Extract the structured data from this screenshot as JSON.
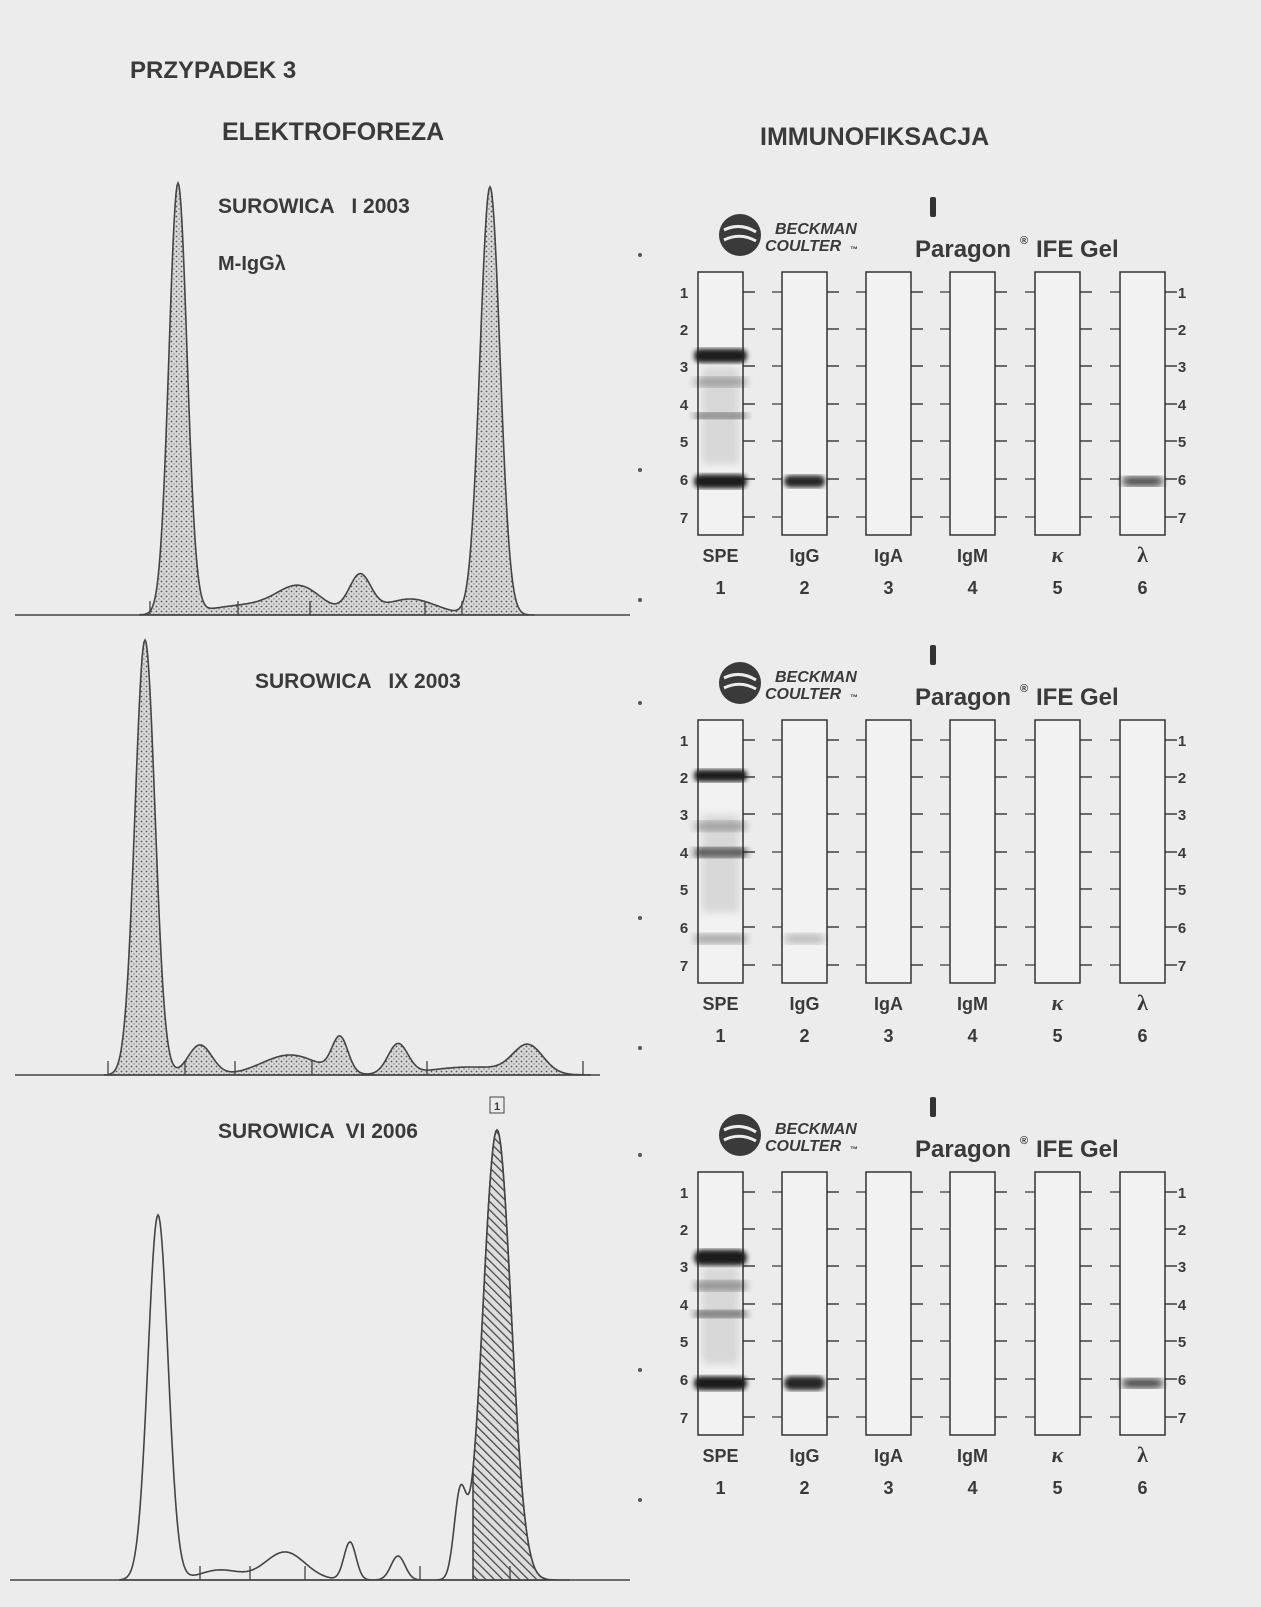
{
  "header": {
    "title": "PRZYPADEK 3"
  },
  "electrophoresis": {
    "title": "ELEKTROFOREZA",
    "samples": [
      {
        "label": "SUROWICA   I 2003",
        "note": "M-IgGλ"
      },
      {
        "label": "SUROWICA   IX 2003"
      },
      {
        "label": "SUROWICA  VI 2006",
        "peak_marker": "1"
      }
    ]
  },
  "immunofixation": {
    "title": "IMMUNOFIKSACJA",
    "gels": [
      {
        "brand": "BECKMAN",
        "brand_line2": "COULTER",
        "trademark": "™",
        "product": "Paragon",
        "registered": "®",
        "product_suffix": "IFE Gel",
        "rows": [
          "1",
          "2",
          "3",
          "4",
          "5",
          "6",
          "7"
        ],
        "lanes": [
          {
            "label": "SPE",
            "number": "1"
          },
          {
            "label": "IgG",
            "number": "2"
          },
          {
            "label": "IgA",
            "number": "3"
          },
          {
            "label": "IgM",
            "number": "4"
          },
          {
            "label": "κ",
            "number": "5"
          },
          {
            "label": "λ",
            "number": "6"
          }
        ]
      },
      {
        "brand": "BECKMAN",
        "brand_line2": "COULTER",
        "trademark": "™",
        "product": "Paragon",
        "registered": "®",
        "product_suffix": "IFE Gel",
        "rows": [
          "1",
          "2",
          "3",
          "4",
          "5",
          "6",
          "7"
        ],
        "lanes": [
          {
            "label": "SPE",
            "number": "1"
          },
          {
            "label": "IgG",
            "number": "2"
          },
          {
            "label": "IgA",
            "number": "3"
          },
          {
            "label": "IgM",
            "number": "4"
          },
          {
            "label": "κ",
            "number": "5"
          },
          {
            "label": "λ",
            "number": "6"
          }
        ]
      },
      {
        "brand": "BECKMAN",
        "brand_line2": "COULTER",
        "trademark": "™",
        "product": "Paragon",
        "registered": "®",
        "product_suffix": "IFE Gel",
        "rows": [
          "1",
          "2",
          "3",
          "4",
          "5",
          "6",
          "7"
        ],
        "lanes": [
          {
            "label": "SPE",
            "number": "1"
          },
          {
            "label": "IgG",
            "number": "2"
          },
          {
            "label": "IgA",
            "number": "3"
          },
          {
            "label": "IgM",
            "number": "4"
          },
          {
            "label": "κ",
            "number": "5"
          },
          {
            "label": "λ",
            "number": "6"
          }
        ]
      }
    ]
  }
}
